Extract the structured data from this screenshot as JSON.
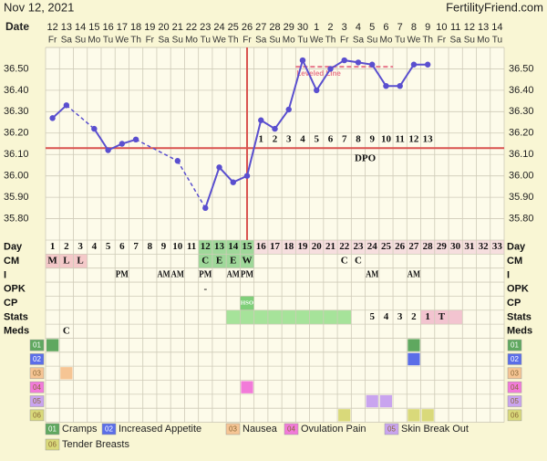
{
  "header": {
    "date": "Nov 12, 2021",
    "site": "FertilityFriend.com"
  },
  "chart_data": {
    "type": "line",
    "date_label": "Date",
    "dates": [
      "12",
      "13",
      "14",
      "15",
      "16",
      "17",
      "18",
      "19",
      "20",
      "21",
      "22",
      "23",
      "24",
      "25",
      "26",
      "27",
      "28",
      "29",
      "30",
      "1",
      "2",
      "3",
      "4",
      "5",
      "6",
      "7",
      "8",
      "9",
      "10",
      "11",
      "12",
      "13",
      "14"
    ],
    "weekdays": [
      "Fr",
      "Sa",
      "Su",
      "Mo",
      "Tu",
      "We",
      "Th",
      "Fr",
      "Sa",
      "Su",
      "Mo",
      "Tu",
      "We",
      "Th",
      "Fr",
      "Sa",
      "Su",
      "Mo",
      "Tu",
      "We",
      "Th",
      "Fr",
      "Sa",
      "Su",
      "Mo",
      "Tu",
      "We",
      "Th",
      "Fr",
      "Sa",
      "Su",
      "Mo",
      "Tu"
    ],
    "ylim": [
      35.7,
      36.6
    ],
    "yticks": [
      {
        "value": 35.8,
        "label": "35.80"
      },
      {
        "value": 35.9,
        "label": "35.90"
      },
      {
        "value": 36.0,
        "label": "36.00"
      },
      {
        "value": 36.1,
        "label": "36.10"
      },
      {
        "value": 36.2,
        "label": "36.20"
      },
      {
        "value": 36.3,
        "label": "36.30"
      },
      {
        "value": 36.4,
        "label": "36.40"
      },
      {
        "value": 36.5,
        "label": "36.50"
      }
    ],
    "values": [
      36.27,
      36.33,
      null,
      36.22,
      36.12,
      36.15,
      36.17,
      null,
      null,
      36.07,
      null,
      35.85,
      36.04,
      35.97,
      36.0,
      36.26,
      36.22,
      36.31,
      36.54,
      36.4,
      36.5,
      36.54,
      36.53,
      36.52,
      36.42,
      36.42,
      36.52,
      36.52,
      null,
      null,
      null,
      null,
      null
    ],
    "color": "#5a4fcf",
    "coverline": 36.13,
    "coverline_color": "#d9534f",
    "ovulation_day": 15,
    "dpo_label": "DPO",
    "dpo": [
      null,
      null,
      null,
      null,
      null,
      null,
      null,
      null,
      null,
      null,
      null,
      null,
      null,
      null,
      null,
      1,
      2,
      3,
      4,
      5,
      6,
      7,
      8,
      9,
      10,
      11,
      12,
      13,
      null,
      null,
      null,
      null,
      null
    ],
    "level_line": {
      "label": "Leveled Line",
      "value": 36.51,
      "days": [
        19,
        25
      ],
      "color": "#e8788a"
    },
    "grid": true
  },
  "day_row": {
    "label": "Day",
    "days": [
      1,
      2,
      3,
      4,
      5,
      6,
      7,
      8,
      9,
      10,
      11,
      12,
      13,
      14,
      15,
      16,
      17,
      18,
      19,
      20,
      21,
      22,
      23,
      24,
      25,
      26,
      27,
      28,
      29,
      30,
      31,
      32,
      33
    ],
    "bands": [
      {
        "days": [
          12,
          13,
          14,
          15
        ],
        "color": "#9fd89a"
      },
      {
        "days": [
          16,
          17,
          18,
          19,
          20,
          21,
          22,
          23,
          24,
          25,
          26,
          27,
          28,
          29,
          30,
          31,
          32,
          33
        ],
        "color": "#f6dede"
      }
    ]
  },
  "rows": [
    {
      "label": "CM",
      "cells": {
        "1": "M",
        "2": "L",
        "3": "L",
        "12": "C",
        "13": "E",
        "14": "E",
        "15": "W",
        "22": "C",
        "23": "C"
      },
      "bands": [
        {
          "days": [
            1,
            2,
            3
          ],
          "color": "#f4c9c9"
        },
        {
          "days": [
            12,
            13,
            14,
            15
          ],
          "color": "#9fd89a"
        }
      ]
    },
    {
      "label": "I",
      "cells": {
        "6": "PM",
        "9": "AM",
        "10": "AM",
        "12": "PM",
        "14": "AM",
        "15": "PM",
        "24": "AM",
        "27": "AM"
      }
    },
    {
      "label": "OPK",
      "cells": {
        "12": "-"
      }
    },
    {
      "label": "CP",
      "cells": {
        "15": "HSO"
      },
      "bands": [
        {
          "days": [
            15
          ],
          "color": "#7fcf79"
        }
      ]
    },
    {
      "label": "Stats",
      "cells": {
        "24": "5",
        "25": "4",
        "26": "3",
        "27": "2",
        "28": "1",
        "29": "T"
      },
      "bands": [
        {
          "days": [
            14,
            15,
            16,
            17,
            18,
            19,
            20,
            21,
            22
          ],
          "color": "#a6e39a"
        },
        {
          "days": [
            28,
            29,
            30
          ],
          "color": "#f3c4d0"
        }
      ]
    },
    {
      "label": "Meds",
      "cells": {
        "2": "C"
      }
    }
  ],
  "meds": [
    {
      "code": "01",
      "name": "Cramps",
      "color": "#5fa85f",
      "days": [
        1,
        27
      ]
    },
    {
      "code": "02",
      "name": "Increased Appetite",
      "color": "#5b6ee8",
      "days": [
        27
      ]
    },
    {
      "code": "03",
      "name": "Nausea",
      "color": "#f6c594",
      "days": [
        2
      ]
    },
    {
      "code": "04",
      "name": "Ovulation Pain",
      "color": "#f27ad9",
      "days": [
        15
      ]
    },
    {
      "code": "05",
      "name": "Skin Break Out",
      "color": "#c9a4ef",
      "days": [
        24,
        25
      ]
    },
    {
      "code": "06",
      "name": "Tender Breasts",
      "color": "#d9d97a",
      "days": [
        22,
        27,
        28
      ]
    }
  ]
}
